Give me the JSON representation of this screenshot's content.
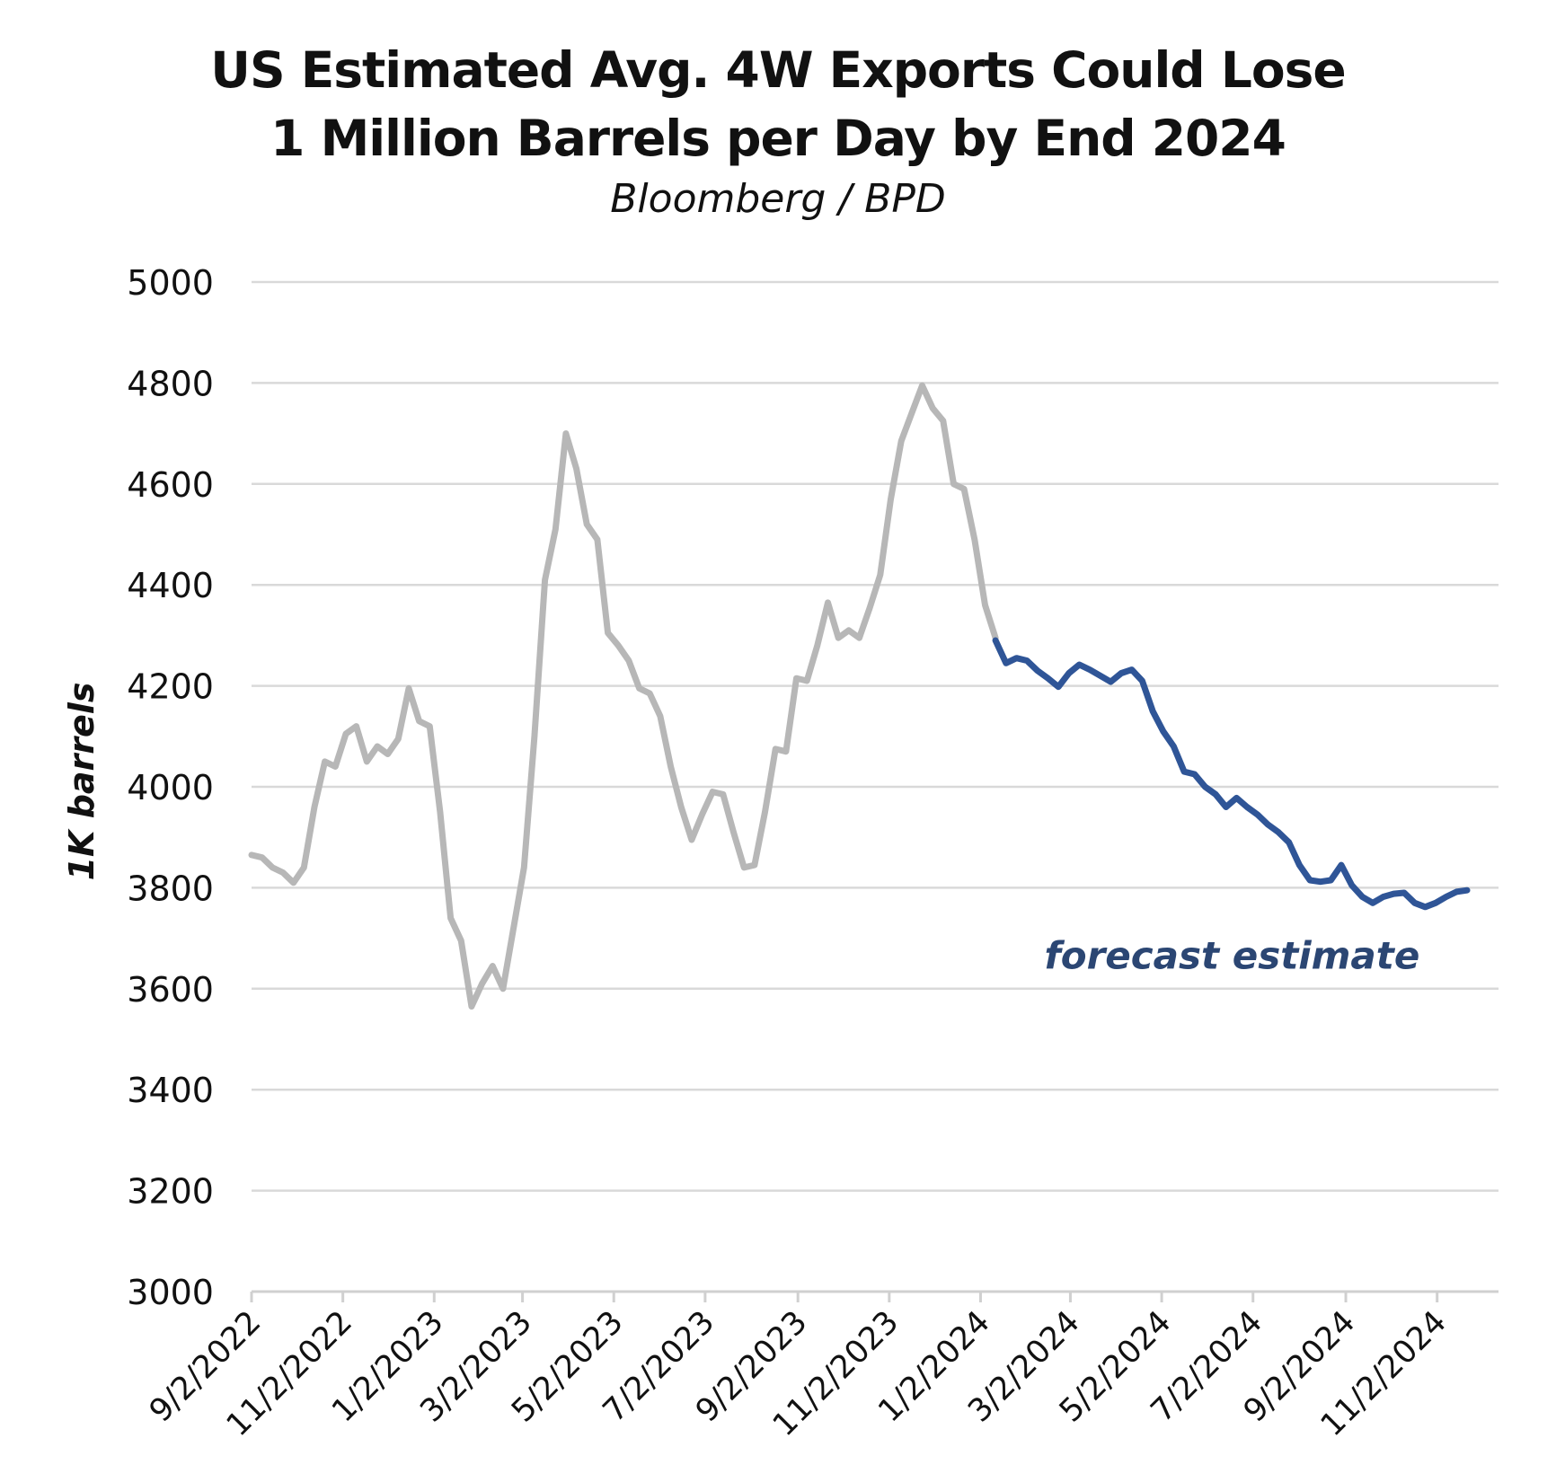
{
  "chart_data": {
    "type": "line",
    "title_lines": [
      "US Estimated Avg. 4W Exports Could Lose",
      "1 Million Barrels per Day by End 2024"
    ],
    "subtitle": "Bloomberg / BPD",
    "xlabel": "",
    "ylabel": "1K barrels",
    "ylim": [
      3000,
      5000
    ],
    "yticks": [
      3000,
      3200,
      3400,
      3600,
      3800,
      4000,
      4200,
      4400,
      4600,
      4800,
      5000
    ],
    "xlim": [
      "2022-09-02",
      "2024-12-13"
    ],
    "xtick_labels": [
      "9/2/2022",
      "11/2/2022",
      "1/2/2023",
      "3/2/2023",
      "5/2/2023",
      "7/2/2023",
      "9/2/2023",
      "11/2/2023",
      "1/2/2024",
      "3/2/2024",
      "5/2/2024",
      "7/2/2024",
      "9/2/2024",
      "11/2/2024"
    ],
    "xtick_dates": [
      "2022-09-02",
      "2022-11-02",
      "2023-01-02",
      "2023-03-02",
      "2023-05-02",
      "2023-07-02",
      "2023-09-02",
      "2023-11-02",
      "2024-01-02",
      "2024-03-02",
      "2024-05-02",
      "2024-07-02",
      "2024-09-02",
      "2024-11-02"
    ],
    "grid": true,
    "annotations": [
      {
        "text": "forecast estimate",
        "x": "2024-06-18",
        "y": 3665,
        "color": "#2b4673"
      }
    ],
    "series": [
      {
        "color": "#b7b7b7",
        "points": [
          [
            "2022-09-02",
            3865
          ],
          [
            "2022-09-09",
            3860
          ],
          [
            "2022-09-16",
            3840
          ],
          [
            "2022-09-23",
            3830
          ],
          [
            "2022-09-30",
            3810
          ],
          [
            "2022-10-07",
            3840
          ],
          [
            "2022-10-14",
            3960
          ],
          [
            "2022-10-21",
            4050
          ],
          [
            "2022-10-28",
            4040
          ],
          [
            "2022-11-04",
            4105
          ],
          [
            "2022-11-11",
            4120
          ],
          [
            "2022-11-18",
            4050
          ],
          [
            "2022-11-25",
            4080
          ],
          [
            "2022-12-02",
            4065
          ],
          [
            "2022-12-09",
            4095
          ],
          [
            "2022-12-16",
            4195
          ],
          [
            "2022-12-23",
            4130
          ],
          [
            "2022-12-30",
            4120
          ],
          [
            "2023-01-06",
            3950
          ],
          [
            "2023-01-13",
            3740
          ],
          [
            "2023-01-20",
            3695
          ],
          [
            "2023-01-27",
            3565
          ],
          [
            "2023-02-03",
            3610
          ],
          [
            "2023-02-10",
            3645
          ],
          [
            "2023-02-17",
            3600
          ],
          [
            "2023-02-24",
            3720
          ],
          [
            "2023-03-03",
            3840
          ],
          [
            "2023-03-10",
            4100
          ],
          [
            "2023-03-17",
            4410
          ],
          [
            "2023-03-24",
            4510
          ],
          [
            "2023-03-31",
            4700
          ],
          [
            "2023-04-07",
            4630
          ],
          [
            "2023-04-14",
            4520
          ],
          [
            "2023-04-21",
            4490
          ],
          [
            "2023-04-28",
            4305
          ],
          [
            "2023-05-05",
            4280
          ],
          [
            "2023-05-12",
            4250
          ],
          [
            "2023-05-19",
            4195
          ],
          [
            "2023-05-26",
            4185
          ],
          [
            "2023-06-02",
            4140
          ],
          [
            "2023-06-09",
            4040
          ],
          [
            "2023-06-16",
            3960
          ],
          [
            "2023-06-23",
            3895
          ],
          [
            "2023-06-30",
            3945
          ],
          [
            "2023-07-07",
            3990
          ],
          [
            "2023-07-14",
            3985
          ],
          [
            "2023-07-21",
            3910
          ],
          [
            "2023-07-28",
            3840
          ],
          [
            "2023-08-04",
            3845
          ],
          [
            "2023-08-11",
            3950
          ],
          [
            "2023-08-18",
            4075
          ],
          [
            "2023-08-25",
            4070
          ],
          [
            "2023-09-01",
            4215
          ],
          [
            "2023-09-08",
            4210
          ],
          [
            "2023-09-15",
            4280
          ],
          [
            "2023-09-22",
            4365
          ],
          [
            "2023-09-29",
            4295
          ],
          [
            "2023-10-06",
            4310
          ],
          [
            "2023-10-13",
            4295
          ],
          [
            "2023-10-20",
            4355
          ],
          [
            "2023-10-27",
            4420
          ],
          [
            "2023-11-03",
            4570
          ],
          [
            "2023-11-10",
            4685
          ],
          [
            "2023-11-17",
            4740
          ],
          [
            "2023-11-24",
            4795
          ],
          [
            "2023-12-01",
            4750
          ],
          [
            "2023-12-08",
            4725
          ],
          [
            "2023-12-15",
            4600
          ],
          [
            "2023-12-22",
            4590
          ],
          [
            "2023-12-29",
            4490
          ],
          [
            "2024-01-05",
            4360
          ],
          [
            "2024-01-12",
            4295
          ]
        ]
      },
      {
        "color": "#2f5597",
        "points": [
          [
            "2024-01-12",
            4290
          ],
          [
            "2024-01-19",
            4245
          ],
          [
            "2024-01-26",
            4255
          ],
          [
            "2024-02-02",
            4250
          ],
          [
            "2024-02-09",
            4230
          ],
          [
            "2024-02-16",
            4215
          ],
          [
            "2024-02-23",
            4198
          ],
          [
            "2024-03-01",
            4225
          ],
          [
            "2024-03-08",
            4242
          ],
          [
            "2024-03-15",
            4232
          ],
          [
            "2024-03-22",
            4220
          ],
          [
            "2024-03-29",
            4208
          ],
          [
            "2024-04-05",
            4225
          ],
          [
            "2024-04-12",
            4232
          ],
          [
            "2024-04-19",
            4210
          ],
          [
            "2024-04-26",
            4150
          ],
          [
            "2024-05-03",
            4110
          ],
          [
            "2024-05-10",
            4080
          ],
          [
            "2024-05-17",
            4030
          ],
          [
            "2024-05-24",
            4025
          ],
          [
            "2024-05-31",
            4000
          ],
          [
            "2024-06-07",
            3985
          ],
          [
            "2024-06-14",
            3960
          ],
          [
            "2024-06-21",
            3978
          ],
          [
            "2024-06-28",
            3960
          ],
          [
            "2024-07-05",
            3945
          ],
          [
            "2024-07-12",
            3925
          ],
          [
            "2024-07-19",
            3910
          ],
          [
            "2024-07-26",
            3890
          ],
          [
            "2024-08-02",
            3845
          ],
          [
            "2024-08-09",
            3815
          ],
          [
            "2024-08-16",
            3812
          ],
          [
            "2024-08-23",
            3815
          ],
          [
            "2024-08-30",
            3845
          ],
          [
            "2024-09-06",
            3805
          ],
          [
            "2024-09-13",
            3782
          ],
          [
            "2024-09-20",
            3770
          ],
          [
            "2024-09-27",
            3782
          ],
          [
            "2024-10-04",
            3788
          ],
          [
            "2024-10-11",
            3790
          ],
          [
            "2024-10-18",
            3770
          ],
          [
            "2024-10-25",
            3762
          ],
          [
            "2024-11-01",
            3770
          ],
          [
            "2024-11-08",
            3782
          ],
          [
            "2024-11-15",
            3792
          ],
          [
            "2024-11-22",
            3795
          ]
        ]
      }
    ]
  }
}
